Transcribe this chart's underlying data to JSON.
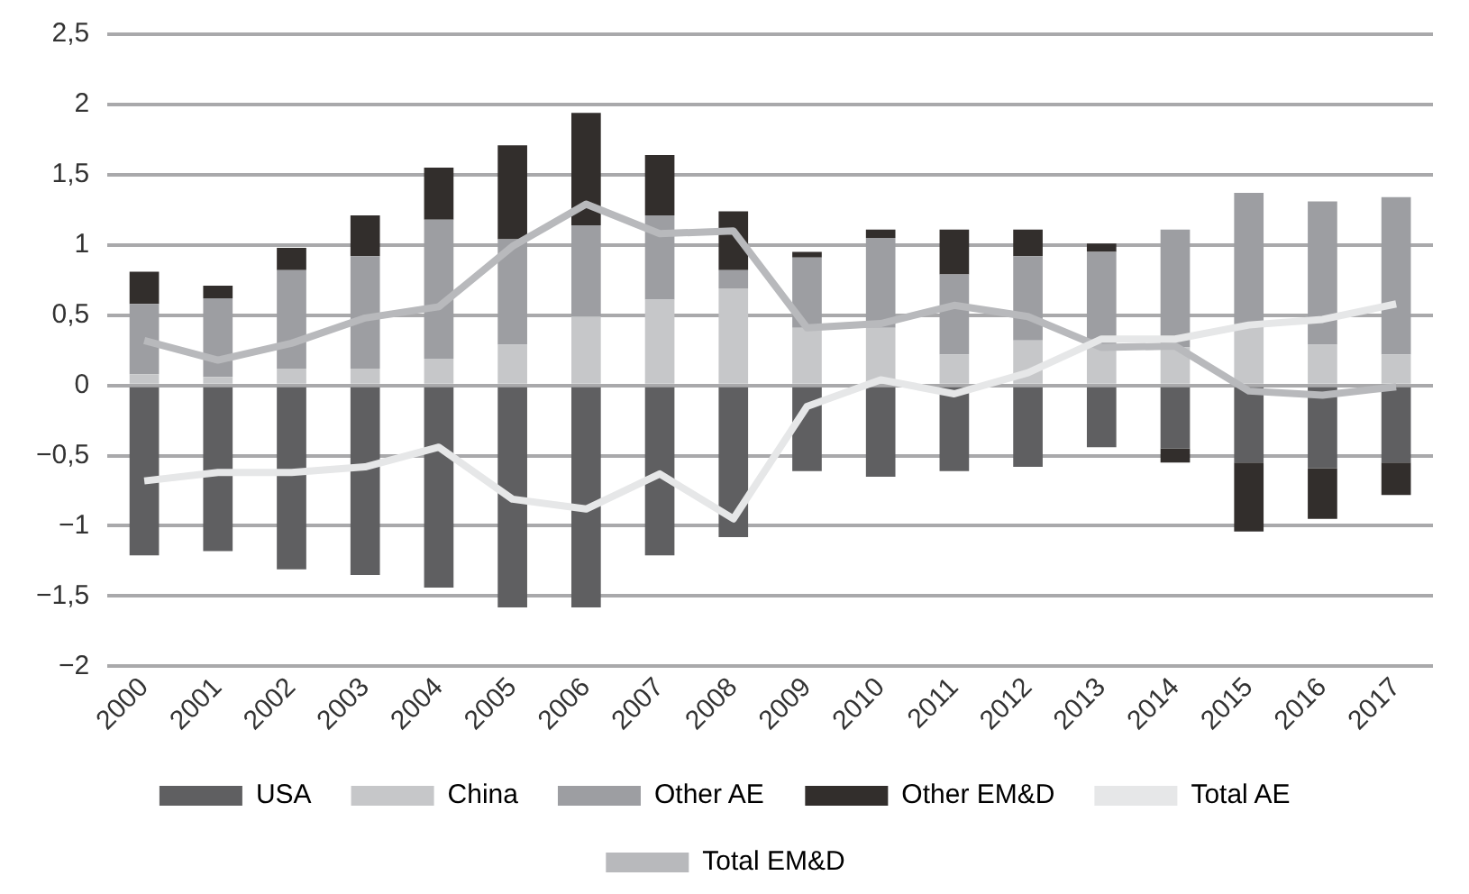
{
  "chart_data": {
    "type": "bar",
    "stacked": true,
    "categories": [
      "2000",
      "2001",
      "2002",
      "2003",
      "2004",
      "2005",
      "2006",
      "2007",
      "2008",
      "2009",
      "2010",
      "2011",
      "2012",
      "2013",
      "2014",
      "2015",
      "2016",
      "2017"
    ],
    "series": [
      {
        "name": "USA",
        "color": "#5f5f61",
        "values": [
          -1.21,
          -1.18,
          -1.31,
          -1.35,
          -1.44,
          -1.58,
          -1.58,
          -1.21,
          -1.08,
          -0.61,
          -0.65,
          -0.61,
          -0.58,
          -0.44,
          -0.45,
          -0.55,
          -0.59,
          -0.55
        ]
      },
      {
        "name": "China",
        "color": "#c6c7c9",
        "values": [
          0.08,
          0.06,
          0.12,
          0.12,
          0.19,
          0.29,
          0.49,
          0.61,
          0.69,
          0.41,
          0.41,
          0.22,
          0.32,
          0.28,
          0.27,
          0.41,
          0.29,
          0.22
        ]
      },
      {
        "name": "Other AE",
        "color": "#9d9ea2",
        "values": [
          0.5,
          0.56,
          0.7,
          0.8,
          0.99,
          0.75,
          0.65,
          0.6,
          0.13,
          0.5,
          0.64,
          0.57,
          0.6,
          0.67,
          0.84,
          0.96,
          1.02,
          1.12
        ]
      },
      {
        "name": "Other EM&D",
        "color": "#322e2c",
        "values": [
          0.23,
          0.09,
          0.16,
          0.29,
          0.37,
          0.67,
          0.8,
          0.43,
          0.42,
          0.04,
          0.06,
          0.32,
          0.19,
          0.06,
          -0.1,
          -0.49,
          -0.36,
          -0.23
        ]
      },
      {
        "name": "Total AE",
        "type": "line",
        "color": "#e6e7e8",
        "values": [
          -0.68,
          -0.62,
          -0.62,
          -0.58,
          -0.44,
          -0.81,
          -0.88,
          -0.63,
          -0.95,
          -0.15,
          0.04,
          -0.06,
          0.09,
          0.33,
          0.33,
          0.43,
          0.47,
          0.58
        ]
      },
      {
        "name": "Total EM&D",
        "type": "line",
        "color": "#b8b9bc",
        "values": [
          0.32,
          0.18,
          0.3,
          0.48,
          0.56,
          0.99,
          1.29,
          1.08,
          1.1,
          0.41,
          0.44,
          0.57,
          0.49,
          0.27,
          0.28,
          -0.04,
          -0.07,
          -0.01
        ]
      }
    ],
    "ylim": [
      -2,
      2.5
    ],
    "yticks": [
      {
        "value": -2,
        "label": "−2"
      },
      {
        "value": -1.5,
        "label": "−1,5"
      },
      {
        "value": -1,
        "label": "−1"
      },
      {
        "value": -0.5,
        "label": "−0,5"
      },
      {
        "value": 0,
        "label": "0"
      },
      {
        "value": 0.5,
        "label": "0,5"
      },
      {
        "value": 1,
        "label": "1"
      },
      {
        "value": 1.5,
        "label": "1,5"
      },
      {
        "value": 2,
        "label": "2"
      },
      {
        "value": 2.5,
        "label": "2,5"
      }
    ],
    "grid": "y",
    "legend": "bottom",
    "marker": "none",
    "line_style": "solid"
  }
}
